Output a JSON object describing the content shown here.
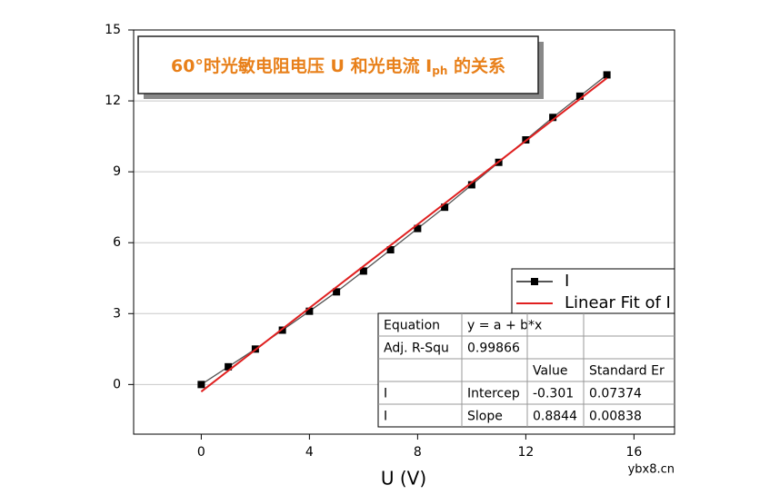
{
  "chart_data": {
    "type": "line",
    "title_parts": [
      "60°时光敏电阻电压 U 和光电流 I",
      "ph",
      " 的关系"
    ],
    "x_label": "U (V)",
    "xlim": [
      -2.5,
      17.5
    ],
    "xticks": [
      0,
      4,
      8,
      12,
      16
    ],
    "ylim": [
      -2.1,
      15
    ],
    "yticks": [
      0,
      3,
      6,
      9,
      12,
      15
    ],
    "grid": true,
    "series": [
      {
        "name": "I",
        "color": "#000000",
        "line_color": "#555555",
        "marker": "square",
        "x": [
          0,
          1,
          2,
          3,
          4,
          5,
          6,
          7,
          8,
          9,
          10,
          11,
          12,
          13,
          14,
          15
        ],
        "values": [
          0,
          0.75,
          1.5,
          2.3,
          3.1,
          3.92,
          4.8,
          5.7,
          6.6,
          7.5,
          8.45,
          9.4,
          10.35,
          11.3,
          12.2,
          13.1
        ]
      },
      {
        "name": "Linear Fit of I",
        "color": "#e02020",
        "marker": "none",
        "x": [
          0,
          15
        ],
        "values": [
          -0.301,
          12.965
        ]
      }
    ],
    "fit_table": {
      "rows": [
        [
          "Equation",
          "y = a + b*x",
          null,
          null
        ],
        [
          "Adj. R-Squ",
          "0.99866",
          null,
          null
        ],
        [
          null,
          null,
          "Value",
          "Standard Er"
        ],
        [
          "I",
          "Intercep",
          "-0.301",
          "0.07374"
        ],
        [
          "I",
          "Slope",
          "0.8844",
          "0.00838"
        ]
      ]
    },
    "watermark": "ybx8.cn"
  }
}
